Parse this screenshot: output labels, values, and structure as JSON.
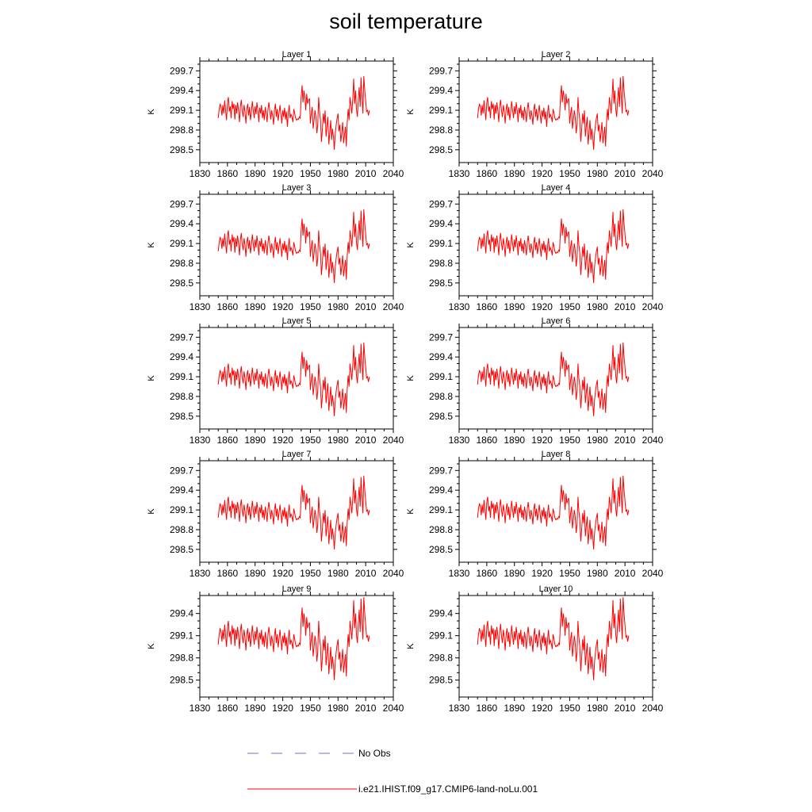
{
  "figure": {
    "title": "soil temperature",
    "series_color": "#ff0000",
    "obs_color": "#6f6fd8"
  },
  "legend": {
    "obs_label": "No Obs",
    "model_label": "i.e21.IHIST.f09_g17.CMIP6-land-noLu.001"
  },
  "chart_data": {
    "type": "line",
    "title": "soil temperature",
    "xlim": [
      1830,
      2040
    ],
    "x_ticks": [
      1830,
      1860,
      1890,
      1920,
      1950,
      1980,
      2010,
      2040
    ],
    "x": [
      1850,
      1851,
      1852,
      1853,
      1854,
      1855,
      1856,
      1857,
      1858,
      1859,
      1860,
      1861,
      1862,
      1863,
      1864,
      1865,
      1866,
      1867,
      1868,
      1869,
      1870,
      1871,
      1872,
      1873,
      1874,
      1875,
      1876,
      1877,
      1878,
      1879,
      1880,
      1881,
      1882,
      1883,
      1884,
      1885,
      1886,
      1887,
      1888,
      1889,
      1890,
      1891,
      1892,
      1893,
      1894,
      1895,
      1896,
      1897,
      1898,
      1899,
      1900,
      1901,
      1902,
      1903,
      1904,
      1905,
      1906,
      1907,
      1908,
      1909,
      1910,
      1911,
      1912,
      1913,
      1914,
      1915,
      1916,
      1917,
      1918,
      1919,
      1920,
      1921,
      1922,
      1923,
      1924,
      1925,
      1926,
      1927,
      1928,
      1929,
      1930,
      1931,
      1932,
      1933,
      1934,
      1935,
      1936,
      1937,
      1938,
      1939,
      1940,
      1941,
      1942,
      1943,
      1944,
      1945,
      1946,
      1947,
      1948,
      1949,
      1950,
      1951,
      1952,
      1953,
      1954,
      1955,
      1956,
      1957,
      1958,
      1959,
      1960,
      1961,
      1962,
      1963,
      1964,
      1965,
      1966,
      1967,
      1968,
      1969,
      1970,
      1971,
      1972,
      1973,
      1974,
      1975,
      1976,
      1977,
      1978,
      1979,
      1980,
      1981,
      1982,
      1983,
      1984,
      1985,
      1986,
      1987,
      1988,
      1989,
      1990,
      1991,
      1992,
      1993,
      1994,
      1995,
      1996,
      1997,
      1998,
      1999,
      2000,
      2001,
      2002,
      2003,
      2004,
      2005,
      2006,
      2007,
      2008,
      2009,
      2010,
      2011,
      2012,
      2013,
      2014
    ],
    "layers": [
      {
        "title": "Layer 1",
        "ylabel": "K",
        "ylim": [
          298.45,
          299.8
        ],
        "y_ticks": [
          298.5,
          298.8,
          299.1,
          299.4,
          299.7
        ],
        "values": [
          298.98,
          299.12,
          299.2,
          299.15,
          299.02,
          299.18,
          299.05,
          299.25,
          299.1,
          298.95,
          299.22,
          299.3,
          299.08,
          299.16,
          298.98,
          299.24,
          299.12,
          299.2,
          298.96,
          299.18,
          299.05,
          299.22,
          299.1,
          298.92,
          299.15,
          299.26,
          299.1,
          299.0,
          299.18,
          299.08,
          298.9,
          299.12,
          299.2,
          299.02,
          299.15,
          298.95,
          299.08,
          299.24,
          299.1,
          298.98,
          299.16,
          299.04,
          299.22,
          299.1,
          298.92,
          299.14,
          299.05,
          299.18,
          298.98,
          299.1,
          298.95,
          299.15,
          299.05,
          298.92,
          299.12,
          299.22,
          299.08,
          298.96,
          299.1,
          299.02,
          298.88,
          299.1,
          299.2,
          299.0,
          299.12,
          298.94,
          299.06,
          299.18,
          299.04,
          298.9,
          299.1,
          299.0,
          299.14,
          298.96,
          299.08,
          298.85,
          299.05,
          299.18,
          298.98,
          299.04,
          299.0,
          298.92,
          299.12,
          299.05,
          298.98,
          298.95,
          298.97,
          298.96,
          299.0,
          298.98,
          299.3,
          299.48,
          299.22,
          299.4,
          299.3,
          299.1,
          299.35,
          299.2,
          299.25,
          299.28,
          298.9,
          299.05,
          299.15,
          298.82,
          298.95,
          299.1,
          299.0,
          298.75,
          298.88,
          299.3,
          299.08,
          298.95,
          298.62,
          298.8,
          299.05,
          298.9,
          299.1,
          298.7,
          298.85,
          299.0,
          298.58,
          298.75,
          298.95,
          298.65,
          298.82,
          298.7,
          298.5,
          298.75,
          298.88,
          298.98,
          299.05,
          298.78,
          298.88,
          298.62,
          298.75,
          298.92,
          298.6,
          298.72,
          298.85,
          298.55,
          298.92,
          299.12,
          298.95,
          299.3,
          299.18,
          299.05,
          299.28,
          299.58,
          299.2,
          299.4,
          299.12,
          299.0,
          299.25,
          299.45,
          299.15,
          299.6,
          299.3,
          299.05,
          299.62,
          299.4,
          299.25,
          299.08,
          299.1,
          299.02,
          299.1
        ]
      },
      {
        "title": "Layer 2",
        "ylabel": "K",
        "ylim": [
          298.45,
          299.8
        ],
        "y_ticks": [
          298.5,
          298.8,
          299.1,
          299.4,
          299.7
        ],
        "values_ref": "Layer 1"
      },
      {
        "title": "Layer 3",
        "ylabel": "K",
        "ylim": [
          298.45,
          299.8
        ],
        "y_ticks": [
          298.5,
          298.8,
          299.1,
          299.4,
          299.7
        ],
        "values_ref": "Layer 1"
      },
      {
        "title": "Layer 4",
        "ylabel": "K",
        "ylim": [
          298.45,
          299.8
        ],
        "y_ticks": [
          298.5,
          298.8,
          299.1,
          299.4,
          299.7
        ],
        "values_ref": "Layer 1"
      },
      {
        "title": "Layer 5",
        "ylabel": "K",
        "ylim": [
          298.45,
          299.8
        ],
        "y_ticks": [
          298.5,
          298.8,
          299.1,
          299.4,
          299.7
        ],
        "values_ref": "Layer 1"
      },
      {
        "title": "Layer 6",
        "ylabel": "K",
        "ylim": [
          298.45,
          299.8
        ],
        "y_ticks": [
          298.5,
          298.8,
          299.1,
          299.4,
          299.7
        ],
        "values_ref": "Layer 1"
      },
      {
        "title": "Layer 7",
        "ylabel": "K",
        "ylim": [
          298.45,
          299.8
        ],
        "y_ticks": [
          298.5,
          298.8,
          299.1,
          299.4,
          299.7
        ],
        "values_ref": "Layer 1"
      },
      {
        "title": "Layer 8",
        "ylabel": "K",
        "ylim": [
          298.45,
          299.8
        ],
        "y_ticks": [
          298.5,
          298.8,
          299.1,
          299.4,
          299.7
        ],
        "values_ref": "Layer 1"
      },
      {
        "title": "Layer 9",
        "ylabel": "K",
        "ylim": [
          298.4,
          299.6
        ],
        "y_ticks": [
          298.5,
          298.8,
          299.1,
          299.4
        ],
        "values_ref": "Layer 1"
      },
      {
        "title": "Layer 10",
        "ylabel": "K",
        "ylim": [
          298.4,
          299.6
        ],
        "y_ticks": [
          298.5,
          298.8,
          299.1,
          299.4
        ],
        "values_ref": "Layer 1"
      }
    ]
  }
}
